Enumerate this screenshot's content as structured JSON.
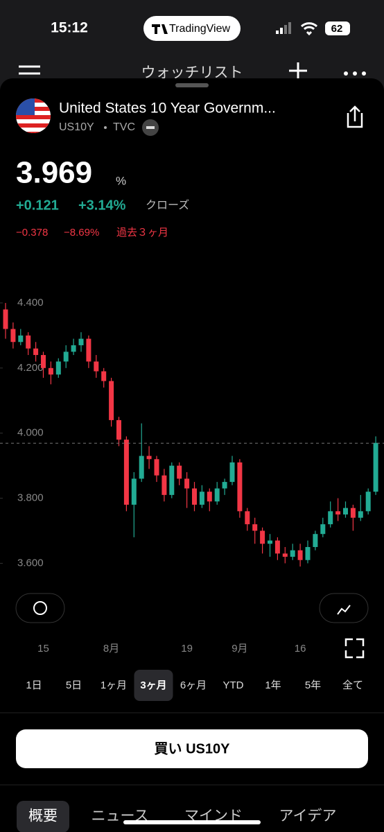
{
  "status_bar": {
    "time": "15:12",
    "app": "TradingView",
    "battery": "62"
  },
  "header": {
    "title": "ウォッチリスト"
  },
  "instrument": {
    "name": "United States 10 Year Governm...",
    "symbol": "US10Y",
    "exchange": "TVC"
  },
  "quote": {
    "price": "3.969",
    "unit": "%",
    "change": "+0.121",
    "change_percent": "+3.14%",
    "status": "クローズ",
    "period_change": "−0.378",
    "period_change_percent": "−8.69%",
    "period_label": "過去３ヶ月"
  },
  "chart_data": {
    "type": "candlestick",
    "categories": [
      null,
      null,
      null,
      null,
      null,
      "15",
      null,
      null,
      null,
      null,
      null,
      null,
      null,
      null,
      "8月",
      null,
      null,
      null,
      null,
      null,
      null,
      null,
      null,
      null,
      "19",
      null,
      null,
      null,
      null,
      null,
      null,
      "9月",
      null,
      null,
      null,
      null,
      null,
      null,
      null,
      "16",
      null,
      null,
      null,
      null,
      null,
      null,
      null,
      null,
      null,
      null
    ],
    "open": [
      4.38,
      4.32,
      4.28,
      4.3,
      4.26,
      4.24,
      4.2,
      4.18,
      4.22,
      4.25,
      4.27,
      4.29,
      4.22,
      4.19,
      4.16,
      4.04,
      3.98,
      3.78,
      3.86,
      3.93,
      3.92,
      3.87,
      3.81,
      3.9,
      3.86,
      3.83,
      3.78,
      3.82,
      3.79,
      3.83,
      3.85,
      3.91,
      3.76,
      3.72,
      3.7,
      3.66,
      3.67,
      3.63,
      3.62,
      3.64,
      3.61,
      3.65,
      3.69,
      3.72,
      3.76,
      3.75,
      3.77,
      3.74,
      3.76,
      3.82
    ],
    "high": [
      4.4,
      4.34,
      4.32,
      4.31,
      4.28,
      4.25,
      4.22,
      4.23,
      4.27,
      4.29,
      4.31,
      4.3,
      4.24,
      4.2,
      4.17,
      4.05,
      3.99,
      3.88,
      4.03,
      3.96,
      3.93,
      3.89,
      3.91,
      3.91,
      3.88,
      3.85,
      3.84,
      3.83,
      3.85,
      3.86,
      3.93,
      3.92,
      3.77,
      3.74,
      3.71,
      3.69,
      3.68,
      3.65,
      3.66,
      3.66,
      3.67,
      3.7,
      3.74,
      3.79,
      3.8,
      3.79,
      3.78,
      3.81,
      3.83,
      3.99
    ],
    "low": [
      4.29,
      4.26,
      4.27,
      4.24,
      4.22,
      4.17,
      4.15,
      4.17,
      4.2,
      4.24,
      4.25,
      4.2,
      4.17,
      4.14,
      4.02,
      3.96,
      3.76,
      3.68,
      3.85,
      3.89,
      3.85,
      3.79,
      3.8,
      3.84,
      3.77,
      3.76,
      3.77,
      3.76,
      3.78,
      3.81,
      3.84,
      3.74,
      3.7,
      3.66,
      3.63,
      3.62,
      3.61,
      3.6,
      3.61,
      3.59,
      3.6,
      3.64,
      3.68,
      3.71,
      3.73,
      3.74,
      3.7,
      3.73,
      3.75,
      3.81
    ],
    "close": [
      4.32,
      4.28,
      4.3,
      4.26,
      4.24,
      4.2,
      4.18,
      4.22,
      4.25,
      4.27,
      4.29,
      4.22,
      4.19,
      4.16,
      4.04,
      3.98,
      3.78,
      3.86,
      3.93,
      3.92,
      3.87,
      3.81,
      3.9,
      3.86,
      3.83,
      3.78,
      3.82,
      3.79,
      3.83,
      3.85,
      3.91,
      3.76,
      3.72,
      3.7,
      3.66,
      3.67,
      3.63,
      3.62,
      3.64,
      3.61,
      3.65,
      3.69,
      3.72,
      3.76,
      3.75,
      3.77,
      3.74,
      3.76,
      3.82,
      3.97
    ],
    "up_color": "#22ab94",
    "down_color": "#f23645",
    "reference_line": 3.969,
    "ylim": [
      3.52,
      4.5
    ],
    "yticks": [
      {
        "value": 3.6,
        "label": "3.600"
      },
      {
        "value": 3.8,
        "label": "3.800"
      },
      {
        "value": 4.0,
        "label": "4.000"
      },
      {
        "value": 4.2,
        "label": "4.200"
      },
      {
        "value": 4.4,
        "label": "4.400"
      }
    ]
  },
  "periods": [
    "1日",
    "5日",
    "1ヶ月",
    "3ヶ月",
    "6ヶ月",
    "YTD",
    "1年",
    "5年",
    "全て"
  ],
  "selected_period": 3,
  "buy_button": "買い US10Y",
  "tabs": [
    "概要",
    "ニュース",
    "マインド",
    "アイデア"
  ]
}
